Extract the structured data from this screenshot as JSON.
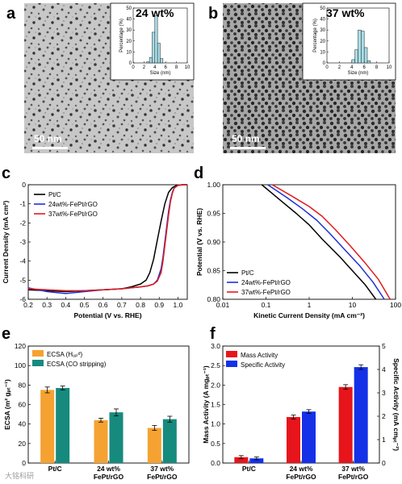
{
  "panels": {
    "a": {
      "label": "a",
      "inset_title": "24 wt%",
      "scale_bar": "50 nm",
      "inset": {
        "ylabel": "Percentage (%)",
        "xlabel": "Size (nm)",
        "yticks": [
          "0",
          "10",
          "20",
          "30",
          "40",
          "50"
        ],
        "xticks": [
          "0",
          "2",
          "4",
          "6",
          "8",
          "10"
        ]
      }
    },
    "b": {
      "label": "b",
      "inset_title": "37 wt%",
      "scale_bar": "50 nm",
      "inset": {
        "ylabel": "Percentage (%)",
        "xlabel": "Size (nm)",
        "yticks": [
          "0",
          "10",
          "20",
          "30",
          "40",
          "50"
        ],
        "xticks": [
          "0",
          "2",
          "4",
          "6",
          "8",
          "10"
        ]
      }
    },
    "c": {
      "label": "c"
    },
    "d": {
      "label": "d"
    },
    "e": {
      "label": "e"
    },
    "f": {
      "label": "f"
    }
  },
  "colors": {
    "black": "#000000",
    "blue": "#1f2fd6",
    "red": "#e01b1b",
    "orange": "#f5a232",
    "teal": "#178a7e",
    "bar_red": "#e8141b",
    "bar_blue": "#1431e8",
    "hist": "#a8dce6"
  },
  "watermark": "大铭科研",
  "chart_data": [
    {
      "id": "a-inset",
      "type": "bar",
      "x": [
        2.75,
        3.25,
        3.75,
        4.25,
        4.75,
        5.25
      ],
      "values": [
        1,
        5,
        28,
        43,
        18,
        4
      ],
      "xlabel": "Size (nm)",
      "ylabel": "Percentage (%)",
      "xlim": [
        0,
        10
      ],
      "ylim": [
        0,
        50
      ]
    },
    {
      "id": "b-inset",
      "type": "bar",
      "x": [
        4.25,
        4.75,
        5.25,
        5.75,
        6.25,
        6.75
      ],
      "values": [
        3,
        12,
        30,
        29,
        14,
        2
      ],
      "xlabel": "Size (nm)",
      "ylabel": "Percentage (%)",
      "xlim": [
        0,
        10
      ],
      "ylim": [
        0,
        50
      ]
    },
    {
      "id": "c",
      "type": "line",
      "xlabel": "Potential (V vs. RHE)",
      "ylabel": "Current Density (mA cm²)",
      "xlim": [
        0.2,
        1.05
      ],
      "ylim": [
        -6,
        0
      ],
      "xticks": [
        "0.2",
        "0.3",
        "0.4",
        "0.5",
        "0.6",
        "0.7",
        "0.8",
        "0.9",
        "1.0"
      ],
      "yticks": [
        "0",
        "-1",
        "-2",
        "-3",
        "-4",
        "-5",
        "-6"
      ],
      "legend": "top-left",
      "series": [
        {
          "name": "Pt/C",
          "color": "#000000",
          "x": [
            0.2,
            0.3,
            0.4,
            0.5,
            0.6,
            0.7,
            0.75,
            0.8,
            0.83,
            0.85,
            0.87,
            0.89,
            0.91,
            0.93,
            0.95,
            0.97,
            0.99,
            1.01,
            1.03,
            1.05
          ],
          "y": [
            -5.5,
            -5.55,
            -5.6,
            -5.55,
            -5.5,
            -5.45,
            -5.35,
            -5.2,
            -5.0,
            -4.6,
            -3.9,
            -2.9,
            -1.9,
            -1.0,
            -0.4,
            -0.15,
            -0.05,
            -0.02,
            0,
            0
          ]
        },
        {
          "name": "24wt%-FePt/rGO",
          "color": "#1f2fd6",
          "x": [
            0.2,
            0.3,
            0.4,
            0.5,
            0.6,
            0.7,
            0.75,
            0.8,
            0.84,
            0.87,
            0.89,
            0.91,
            0.92,
            0.93,
            0.94,
            0.95,
            0.96,
            0.97,
            0.98,
            1.0,
            1.02,
            1.05
          ],
          "y": [
            -5.4,
            -5.6,
            -5.7,
            -5.6,
            -5.5,
            -5.45,
            -5.4,
            -5.35,
            -5.3,
            -5.2,
            -5.0,
            -4.4,
            -3.8,
            -3.0,
            -2.2,
            -1.4,
            -0.8,
            -0.4,
            -0.15,
            -0.03,
            0,
            0
          ]
        },
        {
          "name": "37wt%-FePt/rGO",
          "color": "#e01b1b",
          "x": [
            0.2,
            0.3,
            0.4,
            0.5,
            0.6,
            0.7,
            0.75,
            0.8,
            0.84,
            0.87,
            0.89,
            0.91,
            0.92,
            0.93,
            0.94,
            0.95,
            0.96,
            0.97,
            0.98,
            1.0,
            1.02,
            1.05
          ],
          "y": [
            -5.45,
            -5.5,
            -5.55,
            -5.55,
            -5.5,
            -5.45,
            -5.4,
            -5.35,
            -5.3,
            -5.2,
            -5.05,
            -4.6,
            -4.0,
            -3.2,
            -2.4,
            -1.6,
            -0.9,
            -0.45,
            -0.18,
            -0.04,
            0,
            0
          ]
        }
      ]
    },
    {
      "id": "d",
      "type": "line",
      "xlabel": "Kinetic Current Density (mA cm⁻²)",
      "ylabel": "Potential (V vs. RHE)",
      "xscale": "log",
      "xlim": [
        0.01,
        100
      ],
      "ylim": [
        0.8,
        1.0
      ],
      "xticks": [
        "0.01",
        "0.1",
        "1",
        "10",
        "100"
      ],
      "yticks": [
        "1.00",
        "0.95",
        "0.90",
        "0.85",
        "0.80"
      ],
      "legend": "bottom-left",
      "series": [
        {
          "name": "Pt/C",
          "color": "#000000",
          "x": [
            0.08,
            0.2,
            0.5,
            1,
            2,
            5,
            10,
            20,
            35
          ],
          "y": [
            1.0,
            0.975,
            0.95,
            0.93,
            0.905,
            0.875,
            0.85,
            0.825,
            0.8
          ]
        },
        {
          "name": "24wt%-FePt/rGO",
          "color": "#1f2fd6",
          "x": [
            0.11,
            0.3,
            0.7,
            1.5,
            3,
            7,
            15,
            30,
            55
          ],
          "y": [
            1.0,
            0.978,
            0.958,
            0.938,
            0.915,
            0.885,
            0.858,
            0.83,
            0.8
          ]
        },
        {
          "name": "37wt%-FePt/rGO",
          "color": "#e01b1b",
          "x": [
            0.14,
            0.4,
            1,
            2,
            4,
            9,
            20,
            40,
            75
          ],
          "y": [
            1.0,
            0.98,
            0.962,
            0.945,
            0.922,
            0.893,
            0.863,
            0.835,
            0.8
          ]
        }
      ]
    },
    {
      "id": "e",
      "type": "bar",
      "categories": [
        "Pt/C",
        "24 wt% FePt/rGO",
        "37 wt% FePt/rGO"
      ],
      "category_lines": [
        [
          "Pt/C"
        ],
        [
          "24 wt%",
          "FePt/rGO"
        ],
        [
          "37 wt%",
          "FePt/rGO"
        ]
      ],
      "ylabel": "ECSA (m² gₚₜ⁻¹)",
      "ylim": [
        0,
        120
      ],
      "yticks": [
        "0",
        "20",
        "40",
        "60",
        "80",
        "100",
        "120"
      ],
      "legend": "top-left",
      "series": [
        {
          "name": "ECSA (Hᵤₚᵈ)",
          "color": "#f5a232",
          "values": [
            75,
            44,
            36
          ],
          "errors": [
            3,
            2,
            2.5
          ]
        },
        {
          "name": "ECSA (CO stripping)",
          "color": "#178a7e",
          "values": [
            77,
            52,
            45
          ],
          "errors": [
            2,
            3.5,
            3
          ]
        }
      ]
    },
    {
      "id": "f",
      "type": "bar",
      "categories": [
        "Pt/C",
        "24 wt% FePt/rGO",
        "37 wt% FePt/rGO"
      ],
      "category_lines": [
        [
          "Pt/C"
        ],
        [
          "24 wt%",
          "FePt/rGO"
        ],
        [
          "37 wt%",
          "FePt/rGO"
        ]
      ],
      "ylabel": "Mass Activity (A mgₚₜ⁻¹)",
      "y2label": "Specific Activity (mA cmₚₜ⁻²)",
      "ylim": [
        0,
        3.0
      ],
      "y2lim": [
        0,
        5
      ],
      "yticks": [
        "0.0",
        "0.5",
        "1.0",
        "1.5",
        "2.0",
        "2.5",
        "3.0"
      ],
      "y2ticks": [
        "0",
        "1",
        "2",
        "3",
        "4",
        "5"
      ],
      "legend": "top-left",
      "series": [
        {
          "name": "Mass Activity",
          "color": "#e8141b",
          "axis": "left",
          "values": [
            0.15,
            1.18,
            1.95
          ],
          "errors": [
            0.04,
            0.05,
            0.06
          ]
        },
        {
          "name": "Specific Activity",
          "color": "#1431e8",
          "axis": "right",
          "values": [
            0.2,
            2.2,
            4.1
          ],
          "errors": [
            0.06,
            0.08,
            0.1
          ]
        }
      ]
    }
  ]
}
